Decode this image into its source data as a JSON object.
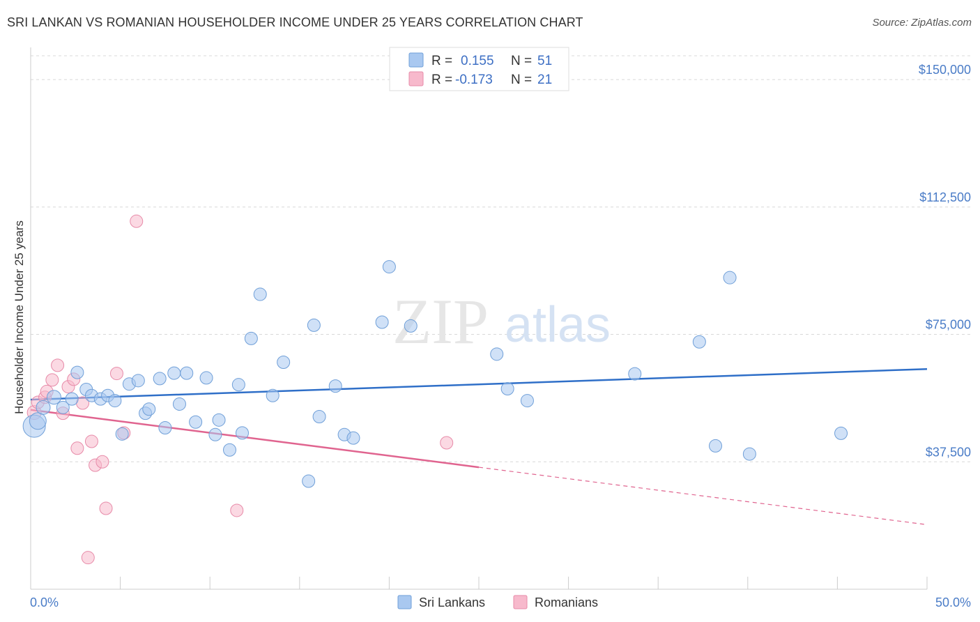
{
  "title": "SRI LANKAN VS ROMANIAN HOUSEHOLDER INCOME UNDER 25 YEARS CORRELATION CHART",
  "source": "Source: ZipAtlas.com",
  "watermark": {
    "zip": "ZIP",
    "atlas": "atlas"
  },
  "colors": {
    "sri_lankans_fill": "#a9c8f0",
    "sri_lankans_stroke": "#6f9fd8",
    "sri_lankans_line": "#2f6fc8",
    "romanians_fill": "#f7b9cc",
    "romanians_stroke": "#e78aa8",
    "romanians_line": "#e0648f",
    "axis_text": "#4a7cc7",
    "grid": "#d8d8d8"
  },
  "legend_top": {
    "rows": [
      {
        "r_label": "R =",
        "r_value": "0.155",
        "n_label": "N =",
        "n_value": "51"
      },
      {
        "r_label": "R =",
        "r_value": "-0.173",
        "n_label": "N =",
        "n_value": "21"
      }
    ]
  },
  "legend_bottom": [
    "Sri Lankans",
    "Romanians"
  ],
  "chart_data": {
    "type": "scatter",
    "title": "SRI LANKAN VS ROMANIAN HOUSEHOLDER INCOME UNDER 25 YEARS CORRELATION CHART",
    "xlabel": "",
    "ylabel": "Householder Income Under 25 years",
    "xlim": [
      0,
      50
    ],
    "ylim": [
      0,
      157000
    ],
    "x_tick_labels": [
      "0.0%",
      "50.0%"
    ],
    "y_ticks": [
      37500,
      75000,
      112500,
      150000
    ],
    "y_tick_labels": [
      "$37,500",
      "$75,000",
      "$112,500",
      "$150,000"
    ],
    "grid": true,
    "legend_placement": "top-center",
    "series": [
      {
        "name": "Sri Lankans",
        "r": 0.155,
        "n": 51,
        "trend": {
          "x": [
            0,
            50
          ],
          "y": [
            55800,
            64800
          ]
        },
        "points": [
          {
            "x": 0.2,
            "y": 48000,
            "s": 16
          },
          {
            "x": 0.4,
            "y": 49500,
            "s": 12
          },
          {
            "x": 0.7,
            "y": 53500,
            "s": 10
          },
          {
            "x": 1.3,
            "y": 56500,
            "s": 10
          },
          {
            "x": 1.8,
            "y": 53500,
            "s": 9
          },
          {
            "x": 2.3,
            "y": 56000,
            "s": 9
          },
          {
            "x": 2.6,
            "y": 63800,
            "s": 9
          },
          {
            "x": 3.1,
            "y": 58800,
            "s": 9
          },
          {
            "x": 3.4,
            "y": 57000,
            "s": 9
          },
          {
            "x": 3.9,
            "y": 56000,
            "s": 9
          },
          {
            "x": 4.3,
            "y": 57000,
            "s": 9
          },
          {
            "x": 4.7,
            "y": 55500,
            "s": 9
          },
          {
            "x": 5.1,
            "y": 45700,
            "s": 9
          },
          {
            "x": 5.5,
            "y": 60400,
            "s": 9
          },
          {
            "x": 6.0,
            "y": 61400,
            "s": 9
          },
          {
            "x": 6.4,
            "y": 51800,
            "s": 9
          },
          {
            "x": 6.6,
            "y": 53000,
            "s": 9
          },
          {
            "x": 7.2,
            "y": 62000,
            "s": 9
          },
          {
            "x": 7.5,
            "y": 47500,
            "s": 9
          },
          {
            "x": 8.0,
            "y": 63600,
            "s": 9
          },
          {
            "x": 8.3,
            "y": 54500,
            "s": 9
          },
          {
            "x": 8.7,
            "y": 63600,
            "s": 9
          },
          {
            "x": 9.2,
            "y": 49200,
            "s": 9
          },
          {
            "x": 9.8,
            "y": 62200,
            "s": 9
          },
          {
            "x": 10.3,
            "y": 45500,
            "s": 9
          },
          {
            "x": 10.5,
            "y": 49800,
            "s": 9
          },
          {
            "x": 11.1,
            "y": 41000,
            "s": 9
          },
          {
            "x": 11.6,
            "y": 60200,
            "s": 9
          },
          {
            "x": 11.8,
            "y": 46000,
            "s": 9
          },
          {
            "x": 12.3,
            "y": 73800,
            "s": 9
          },
          {
            "x": 12.8,
            "y": 86800,
            "s": 9
          },
          {
            "x": 13.5,
            "y": 57000,
            "s": 9
          },
          {
            "x": 14.1,
            "y": 66800,
            "s": 9
          },
          {
            "x": 15.5,
            "y": 31800,
            "s": 9
          },
          {
            "x": 15.8,
            "y": 77700,
            "s": 9
          },
          {
            "x": 16.1,
            "y": 50800,
            "s": 9
          },
          {
            "x": 17.0,
            "y": 59800,
            "s": 9
          },
          {
            "x": 17.5,
            "y": 45500,
            "s": 9
          },
          {
            "x": 18.0,
            "y": 44500,
            "s": 9
          },
          {
            "x": 19.6,
            "y": 78600,
            "s": 9
          },
          {
            "x": 20.0,
            "y": 94900,
            "s": 9
          },
          {
            "x": 21.2,
            "y": 77500,
            "s": 9
          },
          {
            "x": 26.0,
            "y": 69200,
            "s": 9
          },
          {
            "x": 26.6,
            "y": 59000,
            "s": 9
          },
          {
            "x": 27.7,
            "y": 55500,
            "s": 9
          },
          {
            "x": 33.7,
            "y": 63400,
            "s": 9
          },
          {
            "x": 37.3,
            "y": 72800,
            "s": 9
          },
          {
            "x": 38.2,
            "y": 42200,
            "s": 9
          },
          {
            "x": 39.0,
            "y": 91700,
            "s": 9
          },
          {
            "x": 40.1,
            "y": 39800,
            "s": 9
          },
          {
            "x": 45.2,
            "y": 45900,
            "s": 9
          }
        ]
      },
      {
        "name": "Romanians",
        "r": -0.173,
        "n": 21,
        "trend": {
          "x": [
            0,
            25
          ],
          "y": [
            52800,
            35900
          ]
        },
        "trend_dashed": {
          "x": [
            25,
            50
          ],
          "y": [
            35900,
            19000
          ]
        },
        "points": [
          {
            "x": 0.2,
            "y": 52000,
            "s": 10
          },
          {
            "x": 0.4,
            "y": 55000,
            "s": 9
          },
          {
            "x": 0.8,
            "y": 56500,
            "s": 9
          },
          {
            "x": 0.9,
            "y": 58200,
            "s": 9
          },
          {
            "x": 1.2,
            "y": 61600,
            "s": 9
          },
          {
            "x": 1.5,
            "y": 65900,
            "s": 9
          },
          {
            "x": 1.8,
            "y": 51800,
            "s": 9
          },
          {
            "x": 2.1,
            "y": 59600,
            "s": 9
          },
          {
            "x": 2.4,
            "y": 61800,
            "s": 9
          },
          {
            "x": 2.6,
            "y": 41500,
            "s": 9
          },
          {
            "x": 2.9,
            "y": 54800,
            "s": 9
          },
          {
            "x": 3.2,
            "y": 9300,
            "s": 9
          },
          {
            "x": 3.4,
            "y": 43500,
            "s": 9
          },
          {
            "x": 3.6,
            "y": 36500,
            "s": 9
          },
          {
            "x": 4.0,
            "y": 37500,
            "s": 9
          },
          {
            "x": 4.2,
            "y": 23800,
            "s": 9
          },
          {
            "x": 4.8,
            "y": 63500,
            "s": 9
          },
          {
            "x": 5.2,
            "y": 46000,
            "s": 9
          },
          {
            "x": 5.9,
            "y": 108300,
            "s": 9
          },
          {
            "x": 11.5,
            "y": 23200,
            "s": 9
          },
          {
            "x": 23.2,
            "y": 43100,
            "s": 9
          }
        ]
      }
    ]
  }
}
